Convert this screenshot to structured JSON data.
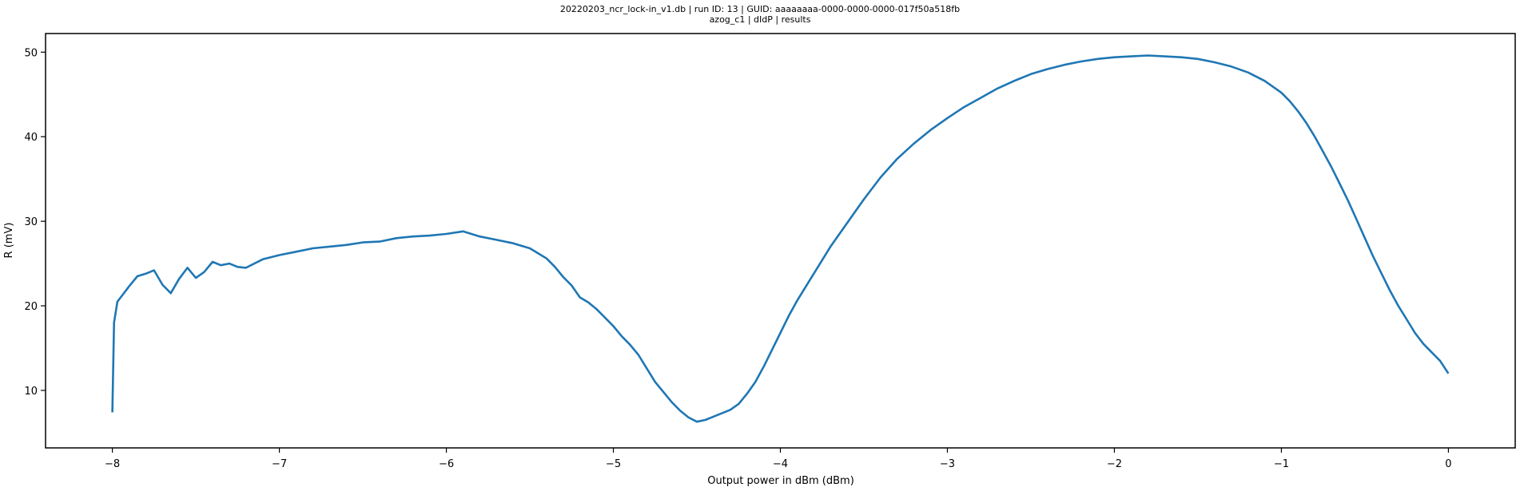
{
  "chart_data": {
    "type": "line",
    "title": "20220203_ncr_lock-in_v1.db | run ID: 13 | GUID: aaaaaaaa-0000-0000-0000-017f50a518fb",
    "subtitle": "azog_c1 | dIdP | results",
    "xlabel": "Output power in dBm (dBm)",
    "ylabel": "R (mV)",
    "xlim": [
      -8.4,
      0.4
    ],
    "ylim": [
      3.2,
      52.2
    ],
    "xticks": [
      -8,
      -7,
      -6,
      -5,
      -4,
      -3,
      -2,
      -1,
      0
    ],
    "xtick_labels": [
      "−8",
      "−7",
      "−6",
      "−5",
      "−4",
      "−3",
      "−2",
      "−1",
      "0"
    ],
    "yticks": [
      10,
      20,
      30,
      40,
      50
    ],
    "ytick_labels": [
      "10",
      "20",
      "30",
      "40",
      "50"
    ],
    "grid": false,
    "legend": "none",
    "line_color": "#1f77b4",
    "series": [
      {
        "x": [
          -8.0,
          -7.99,
          -7.97,
          -7.95,
          -7.9,
          -7.85,
          -7.8,
          -7.75,
          -7.7,
          -7.65,
          -7.6,
          -7.55,
          -7.5,
          -7.45,
          -7.4,
          -7.35,
          -7.3,
          -7.25,
          -7.2,
          -7.1,
          -7.0,
          -6.9,
          -6.8,
          -6.7,
          -6.6,
          -6.5,
          -6.4,
          -6.3,
          -6.2,
          -6.1,
          -6.0,
          -5.9,
          -5.8,
          -5.7,
          -5.6,
          -5.5,
          -5.45,
          -5.4,
          -5.35,
          -5.3,
          -5.25,
          -5.2,
          -5.15,
          -5.1,
          -5.05,
          -5.0,
          -4.95,
          -4.9,
          -4.85,
          -4.8,
          -4.75,
          -4.7,
          -4.65,
          -4.6,
          -4.55,
          -4.5,
          -4.45,
          -4.4,
          -4.35,
          -4.3,
          -4.25,
          -4.2,
          -4.15,
          -4.1,
          -4.05,
          -4.0,
          -3.95,
          -3.9,
          -3.85,
          -3.8,
          -3.75,
          -3.7,
          -3.6,
          -3.5,
          -3.4,
          -3.3,
          -3.2,
          -3.1,
          -3.0,
          -2.9,
          -2.8,
          -2.7,
          -2.6,
          -2.5,
          -2.4,
          -2.3,
          -2.2,
          -2.1,
          -2.0,
          -1.9,
          -1.8,
          -1.7,
          -1.6,
          -1.5,
          -1.4,
          -1.3,
          -1.2,
          -1.1,
          -1.0,
          -0.95,
          -0.9,
          -0.85,
          -0.8,
          -0.75,
          -0.7,
          -0.65,
          -0.6,
          -0.55,
          -0.5,
          -0.45,
          -0.4,
          -0.35,
          -0.3,
          -0.25,
          -0.2,
          -0.15,
          -0.1,
          -0.05,
          0.0
        ],
        "y": [
          7.4,
          18.0,
          20.5,
          21.0,
          22.3,
          23.5,
          23.8,
          24.2,
          22.5,
          21.5,
          23.2,
          24.5,
          23.3,
          24.0,
          25.2,
          24.8,
          25.0,
          24.6,
          24.5,
          25.5,
          26.0,
          26.4,
          26.8,
          27.0,
          27.2,
          27.5,
          27.6,
          28.0,
          28.2,
          28.3,
          28.5,
          28.8,
          28.2,
          27.8,
          27.4,
          26.8,
          26.2,
          25.6,
          24.6,
          23.4,
          22.4,
          21.0,
          20.4,
          19.6,
          18.6,
          17.6,
          16.4,
          15.4,
          14.2,
          12.6,
          11.0,
          9.8,
          8.6,
          7.6,
          6.8,
          6.3,
          6.5,
          6.9,
          7.3,
          7.7,
          8.4,
          9.6,
          11.0,
          12.8,
          14.8,
          16.8,
          18.8,
          20.6,
          22.2,
          23.8,
          25.4,
          27.0,
          29.8,
          32.6,
          35.2,
          37.4,
          39.2,
          40.8,
          42.2,
          43.5,
          44.6,
          45.7,
          46.6,
          47.4,
          48.0,
          48.5,
          48.9,
          49.2,
          49.4,
          49.5,
          49.6,
          49.5,
          49.4,
          49.2,
          48.8,
          48.3,
          47.6,
          46.6,
          45.2,
          44.2,
          43.0,
          41.6,
          40.0,
          38.2,
          36.4,
          34.4,
          32.4,
          30.2,
          28.0,
          25.8,
          23.8,
          21.8,
          20.0,
          18.4,
          16.8,
          15.5,
          14.5,
          13.5,
          12.0
        ]
      }
    ]
  }
}
